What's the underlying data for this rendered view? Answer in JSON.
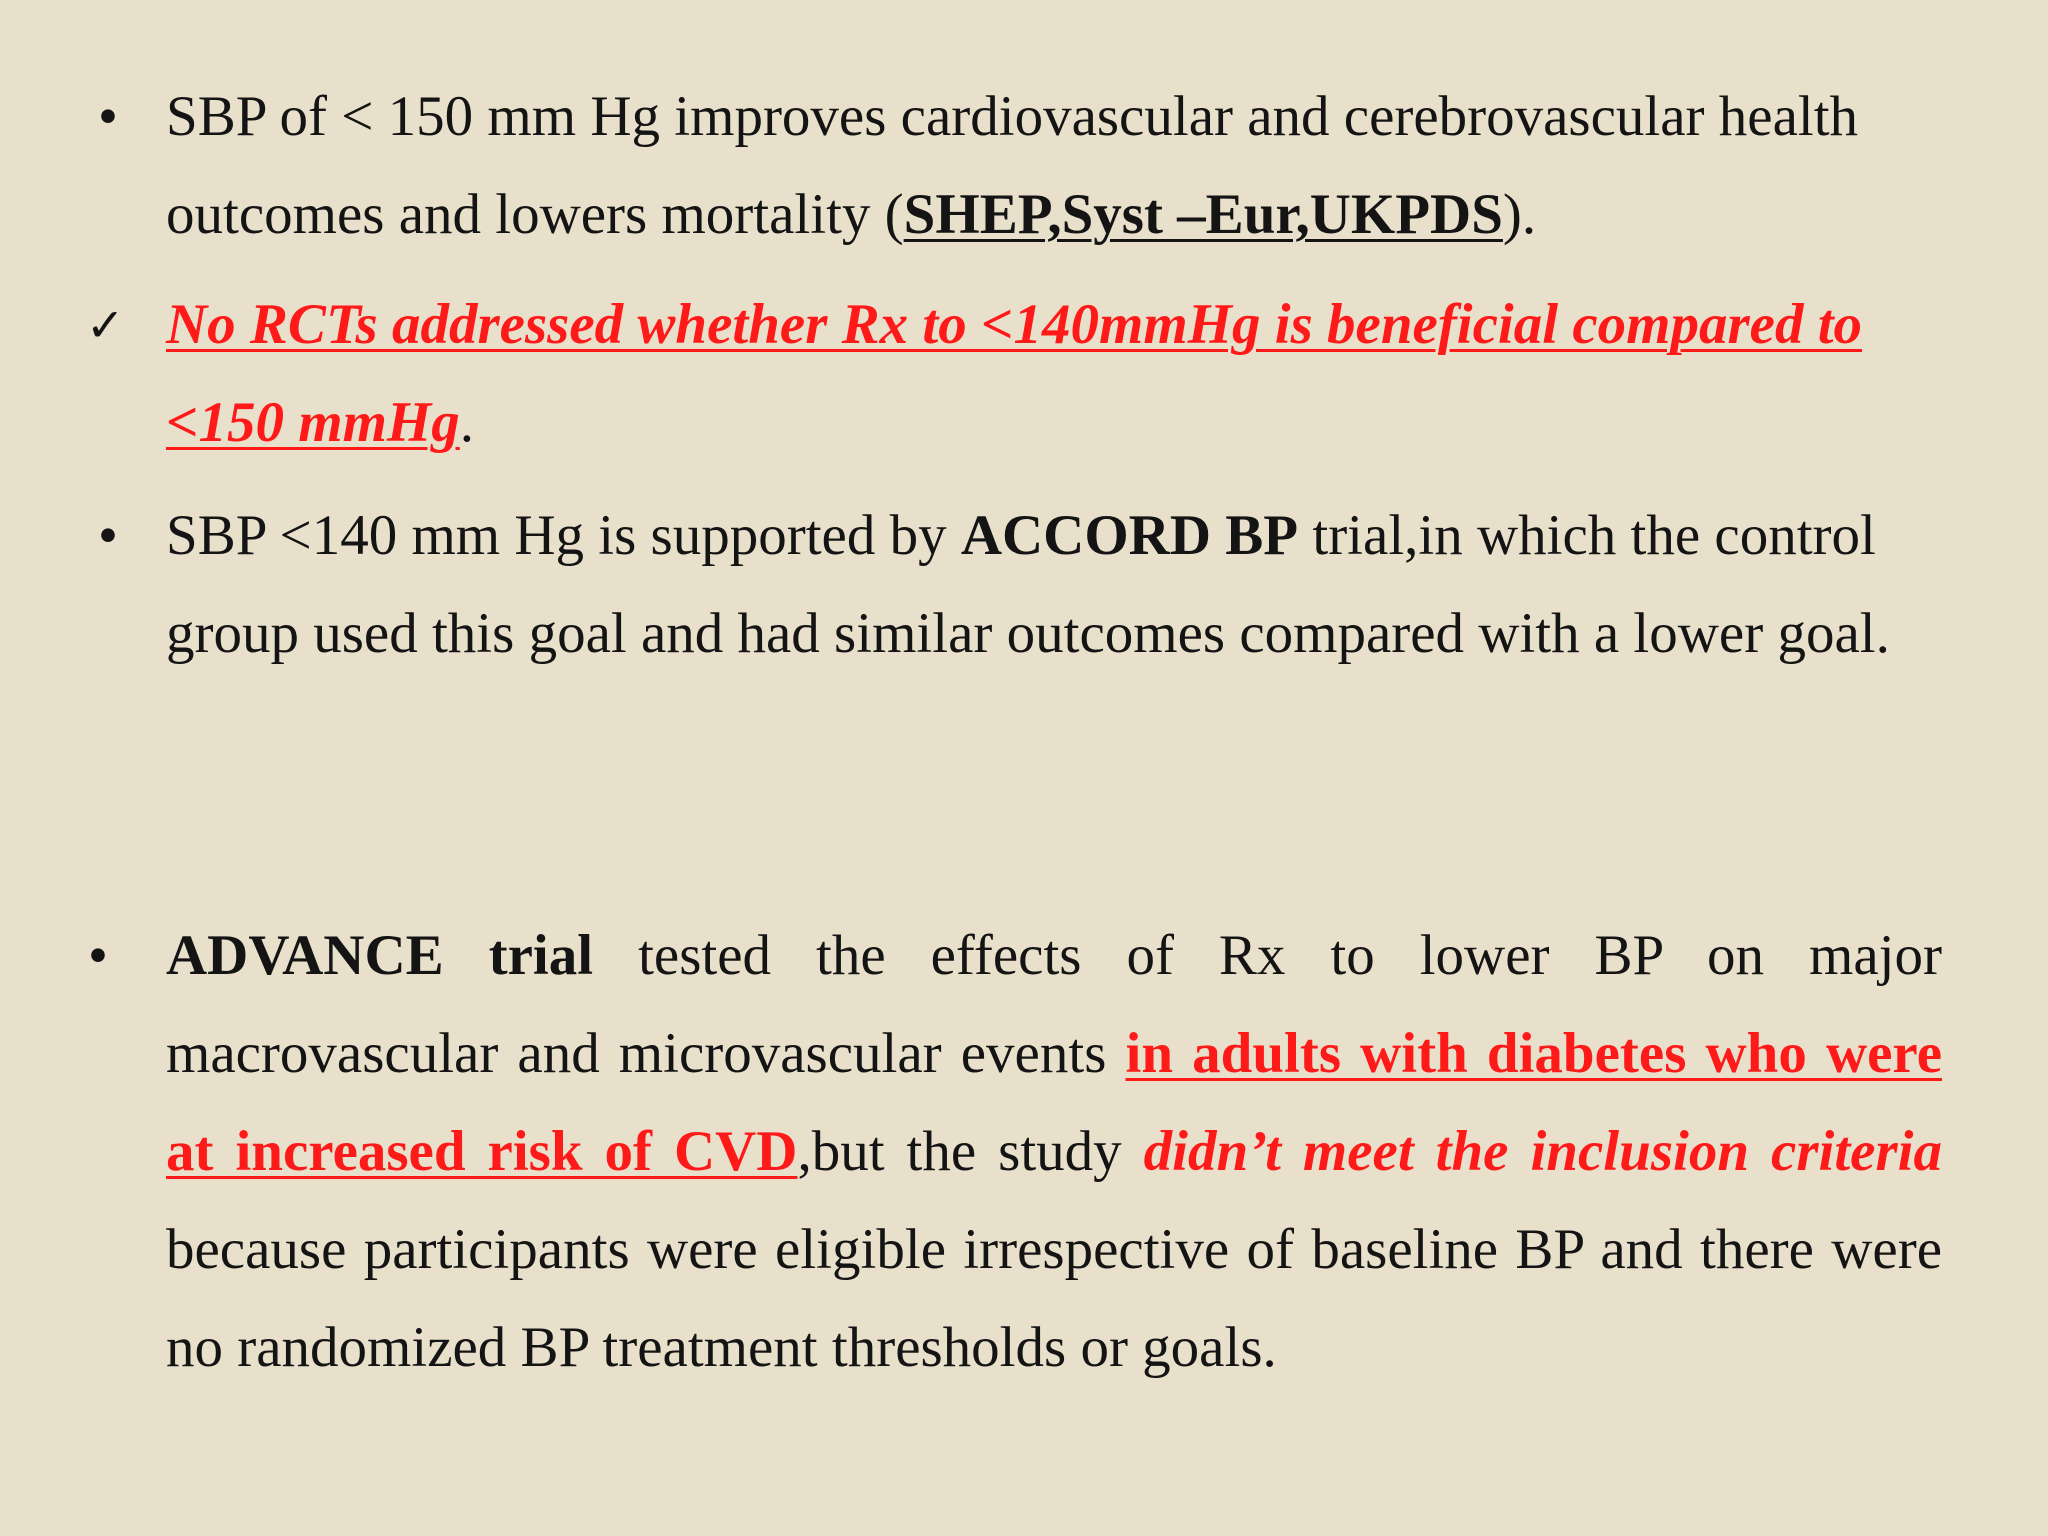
{
  "bullets": {
    "item1": {
      "marker": "•",
      "text_before": "SBP of < 150 mm Hg improves cardiovascular and cerebrovascular health outcomes and lowers mortality  (",
      "trials": "SHEP,Syst –Eur,UKPDS",
      "text_after": ")."
    },
    "item2": {
      "marker": "✓",
      "highlight": "No RCTs addressed whether Rx to <140mmHg is beneficial compared to <150 mmHg",
      "text_after": "."
    },
    "item3": {
      "marker": "•",
      "text_before": "SBP <140 mm Hg is supported by  ",
      "trial": "ACCORD BP",
      "text_after": " trial,in which the control group used this goal and had similar outcomes compared with a lower goal."
    },
    "item4": {
      "marker": "•",
      "trial": "ADVANCE trial",
      "text_1": " tested the effects of Rx to lower BP on major macrovascular and microvascular events ",
      "highlight_1": "in adults with diabetes who were at increased risk of CVD",
      "text_2": ",but the study ",
      "highlight_2": "didn’t meet the inclusion criteria",
      "text_3": " because participants were eligible irrespective of baseline BP and there were no randomized BP treatment thresholds or goals."
    }
  },
  "colors": {
    "background": "#e8e0cb",
    "text": "#141414",
    "accent_red": "#ff1a1a"
  }
}
